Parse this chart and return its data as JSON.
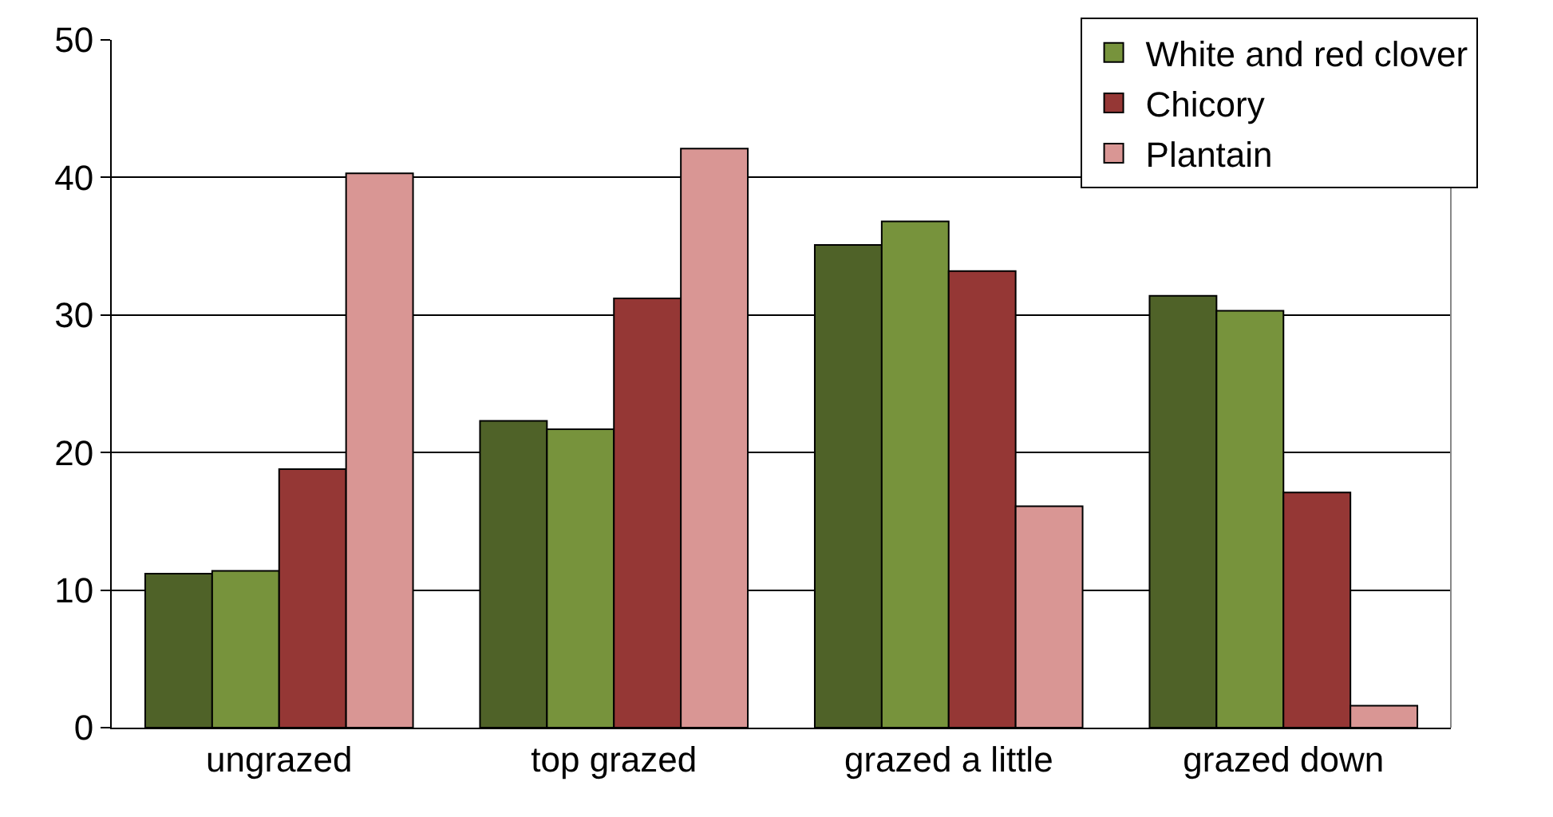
{
  "chart_data": {
    "type": "bar",
    "categories": [
      "ungrazed",
      "top grazed",
      "grazed a little",
      "grazed down"
    ],
    "series": [
      {
        "color": "#4f6228",
        "values": [
          11.2,
          22.3,
          35.1,
          31.4
        ]
      },
      {
        "name": "White and red clover",
        "color": "#77933c",
        "values": [
          11.4,
          21.7,
          36.8,
          30.3
        ]
      },
      {
        "name": "Chicory",
        "color": "#953735",
        "values": [
          18.8,
          31.2,
          33.2,
          17.1
        ]
      },
      {
        "name": "Plantain",
        "color": "#d99694",
        "values": [
          40.3,
          42.1,
          16.1,
          1.6
        ]
      }
    ],
    "ylim": [
      0,
      50
    ],
    "yticks": [
      0,
      10,
      20,
      30,
      40,
      50
    ],
    "grid": "y",
    "legend": "top right"
  }
}
